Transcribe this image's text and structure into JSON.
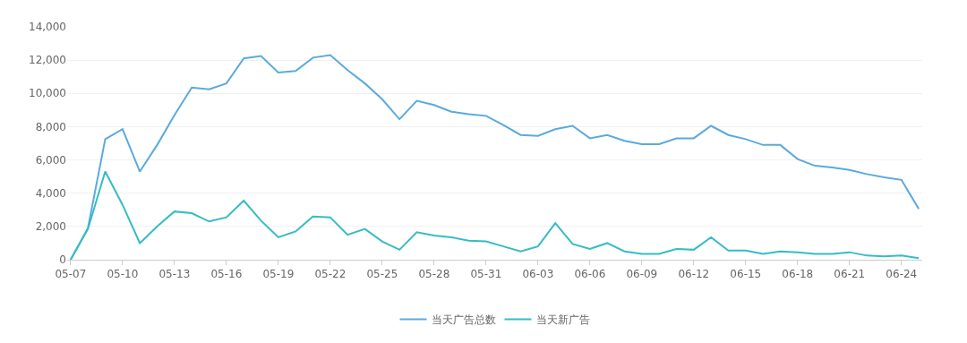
{
  "chart_data": {
    "type": "line",
    "categories": [
      "05-07",
      null,
      null,
      "05-10",
      null,
      null,
      "05-13",
      null,
      null,
      "05-16",
      null,
      null,
      "05-19",
      null,
      null,
      "05-22",
      null,
      null,
      "05-25",
      null,
      null,
      "05-28",
      null,
      null,
      "05-31",
      null,
      null,
      "06-03",
      null,
      null,
      "06-06",
      null,
      null,
      "06-09",
      null,
      null,
      "06-12",
      null,
      null,
      "06-15",
      null,
      null,
      "06-18",
      null,
      null,
      "06-21",
      null,
      null,
      "06-24",
      null
    ],
    "series": [
      {
        "name": "当天广告总数",
        "color": "#5aaade",
        "values": [
          0,
          1900,
          7250,
          7850,
          5300,
          6900,
          8700,
          10350,
          10250,
          10600,
          12100,
          12250,
          11250,
          11350,
          12150,
          12300,
          11400,
          10600,
          9650,
          8450,
          9550,
          9300,
          8900,
          8750,
          8650,
          8100,
          7500,
          7450,
          7850,
          8050,
          7300,
          7500,
          7150,
          6950,
          6950,
          7300,
          7300,
          8050,
          7500,
          7250,
          6900,
          6900,
          6050,
          5650,
          5550,
          5400,
          5150,
          4950,
          4800,
          3050
        ]
      },
      {
        "name": "当天新广告",
        "color": "#36bcc4",
        "values": [
          0,
          1850,
          5300,
          3300,
          1000,
          2000,
          2900,
          2800,
          2300,
          2550,
          3550,
          2350,
          1350,
          1700,
          2600,
          2550,
          1500,
          1850,
          1100,
          600,
          1650,
          1450,
          1350,
          1150,
          1100,
          800,
          500,
          800,
          2200,
          950,
          650,
          1000,
          500,
          350,
          350,
          650,
          600,
          1350,
          550,
          550,
          350,
          500,
          450,
          350,
          350,
          450,
          250,
          200,
          250,
          100
        ]
      }
    ],
    "ylim": [
      0,
      14000
    ],
    "yticks": [
      {
        "value": 0,
        "label": "0"
      },
      {
        "value": 2000,
        "label": "2,000"
      },
      {
        "value": 4000,
        "label": "4,000"
      },
      {
        "value": 6000,
        "label": "6,000"
      },
      {
        "value": 8000,
        "label": "8,000"
      },
      {
        "value": 10000,
        "label": "10,000"
      },
      {
        "value": 12000,
        "label": "12,000"
      },
      {
        "value": 14000,
        "label": "14,000"
      }
    ],
    "grid": "y",
    "legend": "bottom",
    "marker": "none",
    "line_style": "solid"
  }
}
